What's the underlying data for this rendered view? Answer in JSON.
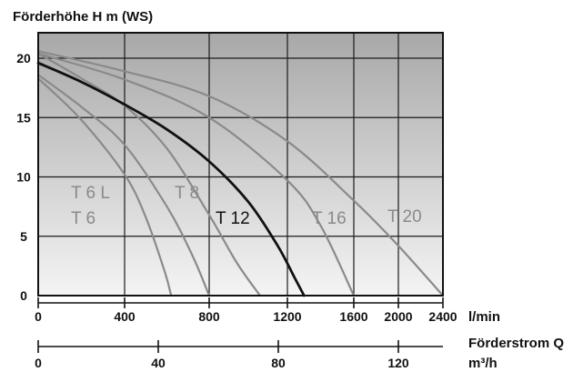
{
  "chart_data": {
    "type": "line",
    "ylabel": "Förderhöhe H m (WS)",
    "xlabel": "l/min",
    "x2label_line1": "Förderstrom Q",
    "x2label_line2": "m³/h",
    "x_ticks": [
      0,
      400,
      800,
      1200,
      1600,
      2000,
      2400
    ],
    "x_tick_labels": [
      "0",
      "400",
      "800",
      "1200",
      "1600",
      "2000",
      "2400"
    ],
    "x_tick_scale": "piecewise: 0–1600 linear, 1600–2400 compressed",
    "x2_ticks": [
      0,
      40,
      80,
      120
    ],
    "x2_tick_labels": [
      "0",
      "40",
      "80",
      "120"
    ],
    "y_ticks": [
      0,
      5,
      10,
      15,
      20
    ],
    "y_tick_labels": [
      "0",
      "5",
      "10",
      "15",
      "20"
    ],
    "ylim": [
      0,
      22
    ],
    "grid": true,
    "background": "vertical gradient from light grey at bottom to darker grey at top",
    "colors": {
      "highlight_curve": "#111111",
      "other_curves": "#8a8a8a",
      "grid": "#1a1a1a"
    },
    "series": [
      {
        "name": "T 6",
        "highlighted": false,
        "points": [
          [
            0,
            18.3
          ],
          [
            200,
            14.8
          ],
          [
            400,
            10.2
          ],
          [
            500,
            6.6
          ],
          [
            590,
            2.0
          ],
          [
            620,
            0
          ]
        ]
      },
      {
        "name": "T 6 L",
        "highlighted": false,
        "points": [
          [
            0,
            18.6
          ],
          [
            200,
            15.9
          ],
          [
            400,
            12.7
          ],
          [
            600,
            7.5
          ],
          [
            720,
            3.4
          ],
          [
            800,
            0
          ]
        ]
      },
      {
        "name": "T 8",
        "highlighted": false,
        "points": [
          [
            0,
            20.4
          ],
          [
            200,
            18.3
          ],
          [
            400,
            16.0
          ],
          [
            600,
            12.4
          ],
          [
            800,
            6.8
          ],
          [
            940,
            2.8
          ],
          [
            1060,
            0
          ]
        ]
      },
      {
        "name": "T 12",
        "highlighted": true,
        "points": [
          [
            0,
            19.6
          ],
          [
            200,
            18.0
          ],
          [
            400,
            16.1
          ],
          [
            600,
            14.0
          ],
          [
            800,
            11.3
          ],
          [
            1000,
            7.9
          ],
          [
            1150,
            4.2
          ],
          [
            1240,
            1.6
          ],
          [
            1300,
            0
          ]
        ]
      },
      {
        "name": "T 16",
        "highlighted": false,
        "points": [
          [
            0,
            20.4
          ],
          [
            400,
            18.2
          ],
          [
            800,
            15.0
          ],
          [
            1200,
            9.7
          ],
          [
            1400,
            5.9
          ],
          [
            1600,
            0
          ]
        ]
      },
      {
        "name": "T 20",
        "highlighted": false,
        "points": [
          [
            0,
            20.6
          ],
          [
            400,
            18.9
          ],
          [
            800,
            16.8
          ],
          [
            1200,
            13.0
          ],
          [
            1600,
            8.0
          ],
          [
            2000,
            4.2
          ],
          [
            2400,
            0
          ]
        ]
      }
    ],
    "labels": [
      {
        "text": "T 6 L",
        "series": "T 6 L"
      },
      {
        "text": "T 6",
        "series": "T 6"
      },
      {
        "text": "T 8",
        "series": "T 8"
      },
      {
        "text": "T 12",
        "series": "T 12"
      },
      {
        "text": "T 16",
        "series": "T 16"
      },
      {
        "text": "T 20",
        "series": "T 20"
      }
    ]
  }
}
